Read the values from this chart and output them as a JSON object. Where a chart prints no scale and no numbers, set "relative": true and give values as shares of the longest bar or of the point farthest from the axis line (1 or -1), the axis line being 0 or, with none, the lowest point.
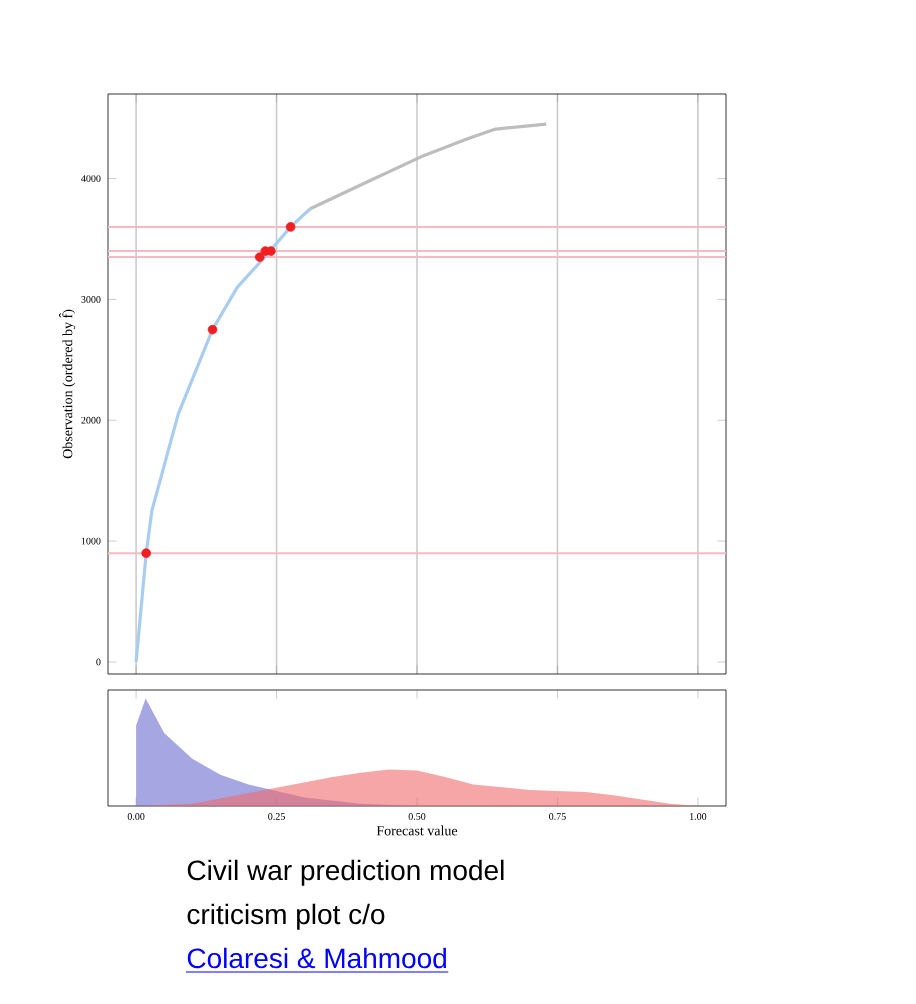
{
  "chart_data": [
    {
      "type": "line",
      "ylabel": "Observation (ordered by f̂)",
      "xlim": [
        -0.05,
        1.05
      ],
      "ylim": [
        -100,
        4700
      ],
      "xticks": [
        0,
        0.25,
        0.5,
        0.75,
        1
      ],
      "yticks": [
        0,
        1000,
        2000,
        3000,
        4000
      ],
      "tick_labels": "y",
      "grid": "x",
      "series": [
        {
          "color": "#a9cdf0",
          "x": [
            0,
            0.018,
            0.028,
            0.075,
            0.136,
            0.18,
            0.229,
            0.275,
            0.31
          ],
          "values": [
            0,
            900,
            1250,
            2050,
            2750,
            3100,
            3350,
            3600,
            3750
          ]
        },
        {
          "color": "#bdbdbd",
          "x": [
            0.31,
            0.41,
            0.507,
            0.59,
            0.64,
            0.73
          ],
          "values": [
            3750,
            3970,
            4180,
            4330,
            4410,
            4450
          ]
        },
        {
          "type": "scatter",
          "color": "#f02020",
          "x": [
            0.018,
            0.136,
            0.22,
            0.23,
            0.24,
            0.275
          ],
          "values": [
            900,
            2750,
            3350,
            3400,
            3400,
            3600
          ]
        }
      ],
      "ref_lines": [
        {
          "axis": "y",
          "value": 900,
          "color": "#f8b8c4"
        },
        {
          "axis": "y",
          "value": 3350,
          "color": "#f8b8c4"
        },
        {
          "axis": "y",
          "value": 3400,
          "color": "#f8b8c4"
        },
        {
          "axis": "y",
          "value": 3600,
          "color": "#f8b8c4"
        }
      ]
    },
    {
      "type": "area",
      "relative": true,
      "xlabel": "Forecast value",
      "xlim": [
        -0.05,
        1.05
      ],
      "xticks": [
        {
          "value": 0,
          "label": "0.00"
        },
        {
          "value": 0.25,
          "label": "0.25"
        },
        {
          "value": 0.5,
          "label": "0.50"
        },
        {
          "value": 0.75,
          "label": "0.75"
        },
        {
          "value": 1,
          "label": "1.00"
        }
      ],
      "tick_labels": "x",
      "series": [
        {
          "color": "#6a6ad0",
          "x": [
            0,
            0,
            0.017,
            0.05,
            0.1,
            0.15,
            0.2,
            0.25,
            0.3,
            0.4,
            0.5
          ],
          "values": [
            0,
            0.75,
            1,
            0.68,
            0.44,
            0.29,
            0.2,
            0.14,
            0.08,
            0.02,
            0
          ]
        },
        {
          "color": "#f06a6a",
          "x": [
            0,
            0.1,
            0.2,
            0.25,
            0.3,
            0.35,
            0.4,
            0.45,
            0.5,
            0.55,
            0.6,
            0.7,
            0.8,
            0.85,
            0.9,
            0.95,
            1
          ],
          "values": [
            0,
            0.02,
            0.12,
            0.17,
            0.22,
            0.27,
            0.31,
            0.34,
            0.33,
            0.27,
            0.2,
            0.15,
            0.13,
            0.1,
            0.06,
            0.02,
            0
          ]
        }
      ],
      "annotations": [
        "Civil war prediction model",
        "criticism plot c/o",
        "Colaresi & Mahmood"
      ]
    }
  ]
}
